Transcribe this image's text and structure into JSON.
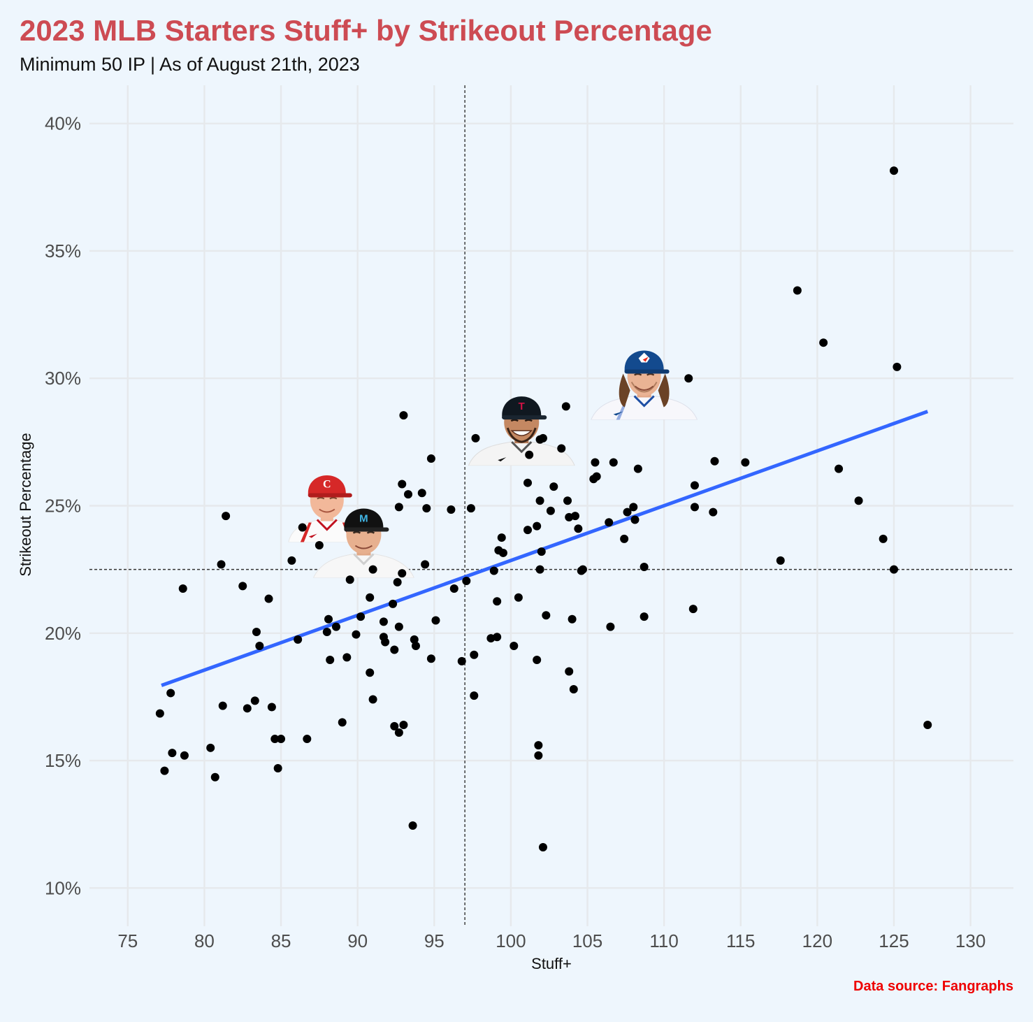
{
  "title": "2023 MLB Starters Stuff+ by Strikeout Percentage",
  "subtitle": "Minimum 50 IP | As of August 21th, 2023",
  "source": "Data source: Fangraphs",
  "chart_data": {
    "type": "scatter",
    "xlabel": "Stuff+",
    "ylabel": "Strikeout Percentage",
    "xlim": [
      72.5,
      132.8
    ],
    "ylim": [
      8.5,
      41.5
    ],
    "x_ticks": [
      75,
      80,
      85,
      90,
      95,
      100,
      105,
      110,
      115,
      120,
      125,
      130
    ],
    "y_ticks": [
      10,
      15,
      20,
      25,
      30,
      35,
      40
    ],
    "y_tick_format": "percent",
    "grid": true,
    "reference_lines": {
      "x": 97.0,
      "y": 22.5
    },
    "trend_line": {
      "x": [
        77.2,
        127.2
      ],
      "y": [
        17.95,
        28.7
      ],
      "color": "#3366ff"
    },
    "point_color": "#000000",
    "player_photos": [
      {
        "x": 88.0,
        "y": 25.0,
        "icon": "reds-player-photo"
      },
      {
        "x": 90.4,
        "y": 23.6,
        "icon": "marlins-player-photo"
      },
      {
        "x": 100.7,
        "y": 28.0,
        "icon": "twins-player-photo"
      },
      {
        "x": 108.7,
        "y": 29.8,
        "icon": "blue-jays-player-photo"
      }
    ],
    "x": [
      125.0,
      118.7,
      120.4,
      125.2,
      111.6,
      103.6,
      93.0,
      97.7,
      101.9,
      102.1,
      103.3,
      101.2,
      94.8,
      105.5,
      106.7,
      105.6,
      105.4,
      108.3,
      113.3,
      115.3,
      121.4,
      101.1,
      102.8,
      92.9,
      94.2,
      93.3,
      92.7,
      94.5,
      97.4,
      96.1,
      101.9,
      103.7,
      102.6,
      108.0,
      107.6,
      112.0,
      112.0,
      113.2,
      122.7,
      81.4,
      86.4,
      101.7,
      101.1,
      103.8,
      104.2,
      106.4,
      108.1,
      104.4,
      99.4,
      107.4,
      124.3,
      87.5,
      94.4,
      99.2,
      99.5,
      85.7,
      81.1,
      117.6,
      125.0,
      108.7,
      104.7,
      104.6,
      101.9,
      102.0,
      98.9,
      91.0,
      92.9,
      89.5,
      92.6,
      97.1,
      96.3,
      78.6,
      82.5,
      90.8,
      84.2,
      99.1,
      92.3,
      100.5,
      111.9,
      102.3,
      90.2,
      88.1,
      104.0,
      95.1,
      91.7,
      88.6,
      92.7,
      108.7,
      106.5,
      83.4,
      88.0,
      89.9,
      86.1,
      98.7,
      99.1,
      91.8,
      91.7,
      93.7,
      83.6,
      93.8,
      100.2,
      92.4,
      97.6,
      89.3,
      88.2,
      94.8,
      96.8,
      101.7,
      90.8,
      103.8,
      77.8,
      104.1,
      97.6,
      91.0,
      83.3,
      81.2,
      82.8,
      84.4,
      77.1,
      89.0,
      92.4,
      93.0,
      92.7,
      84.6,
      85.0,
      86.7,
      80.4,
      101.8,
      77.9,
      78.7,
      101.8,
      84.8,
      77.4,
      80.7,
      127.2,
      93.6,
      102.1
    ],
    "y": [
      38.15,
      33.45,
      31.4,
      30.45,
      30.0,
      28.9,
      28.55,
      27.65,
      27.6,
      27.65,
      27.25,
      27.0,
      26.85,
      26.7,
      26.7,
      26.15,
      26.05,
      26.45,
      26.75,
      26.7,
      26.45,
      25.9,
      25.75,
      25.85,
      25.5,
      25.45,
      24.95,
      24.9,
      24.9,
      24.85,
      25.2,
      25.2,
      24.8,
      24.95,
      24.75,
      25.8,
      24.95,
      24.75,
      25.2,
      24.6,
      24.15,
      24.2,
      24.05,
      24.55,
      24.6,
      24.35,
      24.45,
      24.1,
      23.75,
      23.7,
      23.7,
      23.45,
      22.7,
      23.25,
      23.15,
      22.85,
      22.7,
      22.85,
      22.5,
      22.6,
      22.5,
      22.45,
      22.5,
      23.2,
      22.45,
      22.5,
      22.35,
      22.1,
      22.0,
      22.05,
      21.75,
      21.75,
      21.85,
      21.4,
      21.35,
      21.25,
      21.15,
      21.4,
      20.95,
      20.7,
      20.65,
      20.55,
      20.55,
      20.5,
      20.45,
      20.25,
      20.25,
      20.65,
      20.25,
      20.05,
      20.05,
      19.95,
      19.75,
      19.8,
      19.85,
      19.65,
      19.85,
      19.75,
      19.5,
      19.5,
      19.5,
      19.35,
      19.15,
      19.05,
      18.95,
      19.0,
      18.9,
      18.95,
      18.45,
      18.5,
      17.65,
      17.8,
      17.55,
      17.4,
      17.35,
      17.15,
      17.05,
      17.1,
      16.85,
      16.5,
      16.35,
      16.4,
      16.1,
      15.85,
      15.85,
      15.85,
      15.5,
      15.6,
      15.3,
      15.2,
      15.2,
      14.7,
      14.6,
      14.35,
      16.4,
      12.45,
      11.6
    ]
  }
}
